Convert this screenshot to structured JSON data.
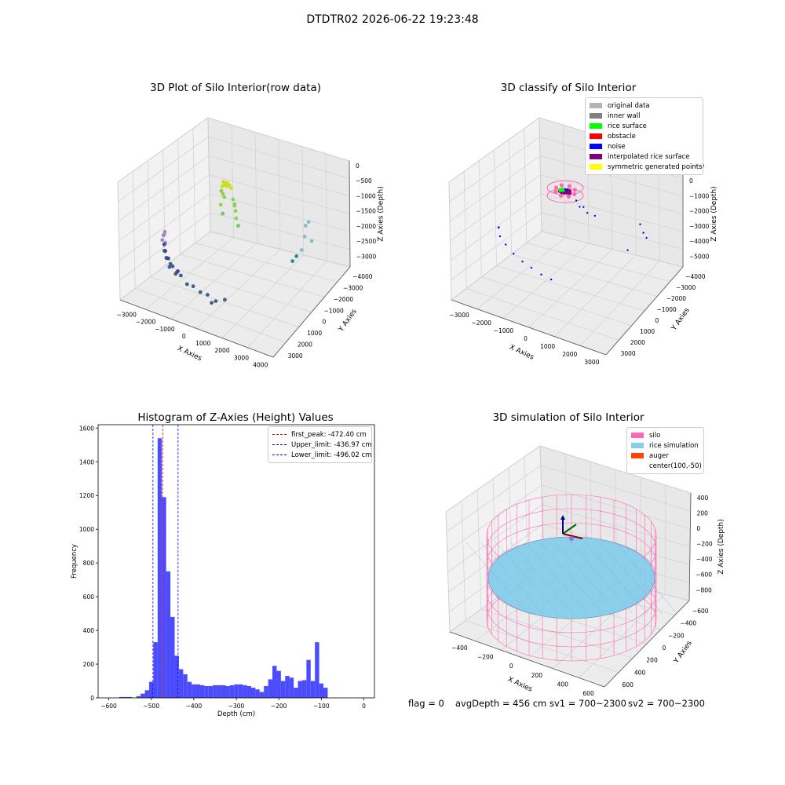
{
  "figure": {
    "suptitle": "DTDTR02 2026-06-22 19:23:48"
  },
  "status": {
    "flag": "flag = 0",
    "avg_depth": "avgDepth = 456 cm",
    "sv1": "sv1 = 700~2300",
    "sv2": "sv2 = 700~2300"
  },
  "chart_data": [
    {
      "type": "scatter",
      "title": "3D Plot of Silo Interior(row data)",
      "xlabel": "X Axies",
      "ylabel": "Y Axies",
      "zlabel": "Z Axies (Depth)",
      "xticks": [
        "−3000",
        "−2000",
        "−1000",
        "0",
        "1000",
        "2000",
        "3000",
        "4000"
      ],
      "yticks": [
        "−4000",
        "−3000",
        "−2000",
        "−1000",
        "0",
        "1000",
        "2000",
        "3000"
      ],
      "zticks": [
        "0",
        "−500",
        "−1000",
        "−1500",
        "−2000",
        "−2500",
        "−3000"
      ],
      "point_clusters": [
        {
          "color": "#c8e01e",
          "points": [
            [
              -150,
              -300,
              -450
            ],
            [
              -100,
              -250,
              -500
            ],
            [
              -50,
              -300,
              -480
            ],
            [
              0,
              -250,
              -470
            ],
            [
              50,
              -300,
              -460
            ],
            [
              100,
              -250,
              -520
            ],
            [
              150,
              -300,
              -490
            ],
            [
              -120,
              -200,
              -550
            ],
            [
              80,
              -200,
              -540
            ],
            [
              0,
              -350,
              -500
            ],
            [
              -200,
              -300,
              -600
            ],
            [
              200,
              -250,
              -580
            ],
            [
              -50,
              -150,
              -560
            ],
            [
              60,
              -380,
              -510
            ]
          ]
        },
        {
          "color": "#8fd14f",
          "points": [
            [
              -300,
              -200,
              -800
            ],
            [
              -250,
              -150,
              -900
            ],
            [
              -350,
              -100,
              -850
            ],
            [
              300,
              -250,
              -900
            ],
            [
              400,
              -300,
              -1000
            ],
            [
              450,
              -300,
              -1200
            ],
            [
              350,
              -200,
              -1100
            ],
            [
              500,
              -350,
              -1400
            ],
            [
              -400,
              -50,
              -1300
            ],
            [
              -200,
              -100,
              -1000
            ]
          ]
        },
        {
          "color": "#6ccd5a",
          "points": [
            [
              -250,
              -150,
              -1500
            ],
            [
              600,
              -350,
              -1600
            ]
          ]
        },
        {
          "color": "#7fbfd0",
          "points": [
            [
              3000,
              1500,
              -1700
            ],
            [
              3100,
              1600,
              -1600
            ],
            [
              3000,
              1400,
              -2000
            ],
            [
              3200,
              1700,
              -2200
            ],
            [
              2900,
              1300,
              -2400
            ]
          ]
        },
        {
          "color": "#2a8c8c",
          "points": [
            [
              2700,
              1200,
              -2600
            ],
            [
              2600,
              1000,
              -2700
            ]
          ]
        },
        {
          "color": "#a48cc0",
          "points": [
            [
              -2600,
              -1200,
              -2300
            ],
            [
              -2700,
              -1100,
              -2400
            ],
            [
              -2500,
              -1300,
              -2500
            ],
            [
              -2800,
              -1000,
              -2600
            ],
            [
              -2550,
              -1250,
              -2200
            ],
            [
              -2650,
              -1150,
              -2350
            ]
          ]
        },
        {
          "color": "#3f5f8f",
          "points": [
            [
              -2800,
              -800,
              -3000
            ],
            [
              -2600,
              -1000,
              -3100
            ],
            [
              -2400,
              -1200,
              -3000
            ],
            [
              -2200,
              -1400,
              -3050
            ],
            [
              -2000,
              -1600,
              -3000
            ],
            [
              -1700,
              -1800,
              -3050
            ],
            [
              -1400,
              -2000,
              -3000
            ],
            [
              -1000,
              -2200,
              -3100
            ],
            [
              -600,
              -2400,
              -3000
            ],
            [
              -200,
              -2500,
              -3050
            ],
            [
              200,
              -2600,
              -3000
            ],
            [
              600,
              -2600,
              -3100
            ],
            [
              1000,
              -2500,
              -3000
            ],
            [
              -2300,
              -1300,
              -3200
            ],
            [
              -1800,
              -1700,
              -3150
            ],
            [
              400,
              -2600,
              -3200
            ]
          ]
        },
        {
          "color": "#3b4a8c",
          "points": [
            [
              -2900,
              -600,
              -2900
            ],
            [
              -2700,
              -900,
              -2950
            ],
            [
              -2500,
              -1100,
              -3050
            ],
            [
              -1600,
              -1900,
              -2950
            ]
          ]
        }
      ]
    },
    {
      "type": "scatter",
      "title": "3D classify of Silo Interior",
      "xlabel": "X Axies",
      "ylabel": "Y Axies",
      "zlabel": "Z Axies (Depth)",
      "xticks": [
        "−3000",
        "−2000",
        "−1000",
        "0",
        "1000",
        "2000",
        "3000"
      ],
      "yticks": [
        "−4000",
        "−3000",
        "−2000",
        "−1000",
        "0",
        "1000",
        "2000",
        "3000"
      ],
      "zticks": [
        "1000",
        "0",
        "−1000",
        "−2000",
        "−3000",
        "−4000",
        "−5000"
      ],
      "legend": [
        {
          "label": "original data",
          "color": "#b3b3b3"
        },
        {
          "label": "inner wall",
          "color": "#808080"
        },
        {
          "label": "rice surface",
          "color": "#00ff00"
        },
        {
          "label": "obstacle",
          "color": "#ff0000"
        },
        {
          "label": "noise",
          "color": "#0000ff"
        },
        {
          "label": "interpolated rice surface",
          "color": "#800080"
        },
        {
          "label": "symmetric generated points",
          "color": "#ffff00"
        }
      ],
      "point_clusters": [
        {
          "color": "#ff69b4",
          "points": [
            [
              -300,
              -300,
              -450
            ],
            [
              300,
              -300,
              -450
            ],
            [
              300,
              300,
              -450
            ],
            [
              -300,
              300,
              -450
            ],
            [
              0,
              -420,
              -450
            ],
            [
              420,
              0,
              -450
            ],
            [
              0,
              420,
              -450
            ],
            [
              -420,
              0,
              -450
            ]
          ]
        },
        {
          "color": "#800080",
          "points": [
            [
              -200,
              -100,
              -470
            ],
            [
              -100,
              -150,
              -460
            ],
            [
              0,
              -100,
              -470
            ],
            [
              100,
              -50,
              -460
            ],
            [
              200,
              0,
              -470
            ],
            [
              -150,
              50,
              -480
            ],
            [
              50,
              100,
              -470
            ],
            [
              150,
              100,
              -465
            ]
          ]
        },
        {
          "color": "#00ff00",
          "points": [
            [
              -200,
              -50,
              -450
            ],
            [
              -150,
              0,
              -460
            ],
            [
              -100,
              50,
              -455
            ]
          ]
        },
        {
          "color": "#0000ff",
          "points": [
            [
              50,
              -50,
              -350
            ],
            [
              100,
              0,
              -340
            ],
            [
              0,
              0,
              -360
            ],
            [
              80,
              50,
              -380
            ],
            [
              600,
              -200,
              -600
            ],
            [
              800,
              -300,
              -800
            ],
            [
              1000,
              -350,
              -700
            ],
            [
              1200,
              -400,
              -900
            ],
            [
              1500,
              -300,
              -1000
            ],
            [
              -2500,
              -1200,
              -2800
            ],
            [
              -2600,
              -1000,
              -3000
            ],
            [
              -2400,
              -1300,
              -3200
            ],
            [
              -2000,
              -1600,
              -3300
            ],
            [
              -1500,
              -1900,
              -3400
            ],
            [
              -1000,
              -2100,
              -3500
            ],
            [
              -500,
              -2300,
              -3500
            ],
            [
              0,
              -2400,
              -3600
            ],
            [
              500,
              -2500,
              -3600
            ],
            [
              2800,
              1400,
              -2000
            ],
            [
              2900,
              1500,
              -2500
            ],
            [
              3000,
              1600,
              -2800
            ],
            [
              2500,
              800,
              -3200
            ]
          ]
        }
      ]
    },
    {
      "type": "bar",
      "title": "Histogram of Z-Axies (Height) Values",
      "xlabel": "Depth (cm)",
      "ylabel": "Frequency",
      "xlim": [
        -625,
        25
      ],
      "ylim": [
        0,
        1620
      ],
      "xticks": [
        -600,
        -500,
        -400,
        -300,
        -200,
        -100,
        0
      ],
      "yticks": [
        0,
        200,
        400,
        600,
        800,
        1000,
        1200,
        1400,
        1600
      ],
      "bin_start": -575,
      "bin_width": 10,
      "values": [
        5,
        5,
        5,
        0,
        10,
        25,
        45,
        95,
        330,
        1540,
        1190,
        750,
        480,
        250,
        170,
        140,
        95,
        80,
        80,
        75,
        70,
        70,
        75,
        75,
        75,
        70,
        75,
        80,
        80,
        75,
        70,
        60,
        50,
        35,
        70,
        110,
        190,
        160,
        100,
        130,
        120,
        60,
        100,
        105,
        225,
        100,
        330,
        85,
        60
      ],
      "bar_color": "#4c4cff",
      "vlines": [
        {
          "label": "first_peak: -472.40 cm",
          "x": -472.4,
          "color": "#ff0000"
        },
        {
          "label": "Upper_limit: -436.97 cm",
          "x": -436.97,
          "color": "#0000ff"
        },
        {
          "label": "Lower_limit: -496.02 cm",
          "x": -496.02,
          "color": "#0000ff"
        }
      ]
    },
    {
      "type": "surface",
      "title": "3D simulation of Silo Interior",
      "xlabel": "X Axies",
      "ylabel": "Y Axies",
      "zlabel": "Z Axies (Depth)",
      "xticks": [
        "−400",
        "−200",
        "0",
        "200",
        "400",
        "600"
      ],
      "yticks": [
        "−600",
        "−400",
        "−200",
        "0",
        "200",
        "400",
        "600"
      ],
      "zticks": [
        "400",
        "200",
        "0",
        "−200",
        "−400",
        "−600",
        "−800"
      ],
      "legend": [
        {
          "label": "silo",
          "color": "#ff69b4"
        },
        {
          "label": "rice simulation",
          "color": "#87ceeb"
        },
        {
          "label": "auger",
          "color": "#ff4500"
        },
        {
          "label": "center(100,-50)",
          "color": ""
        }
      ],
      "silo": {
        "radius": 650,
        "z_top": 0,
        "z_bottom": -900
      },
      "rice_surface_depth": -456,
      "center": [
        100,
        -50
      ]
    }
  ]
}
